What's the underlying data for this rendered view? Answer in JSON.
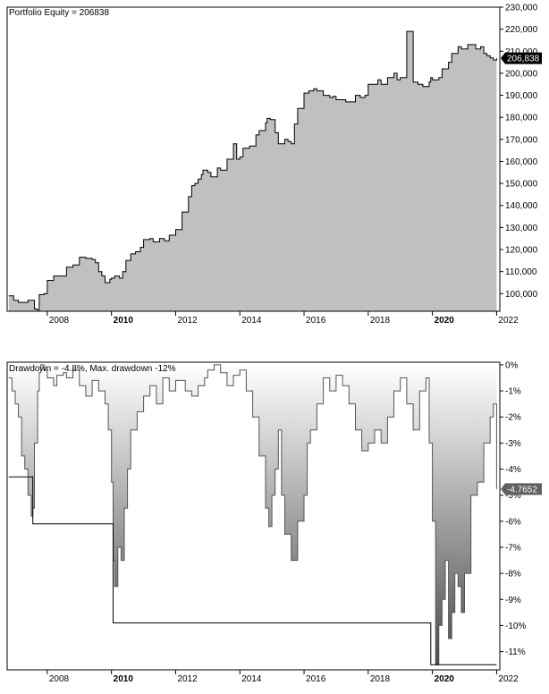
{
  "chart_data": [
    {
      "type": "area",
      "title": "Portfolio Equity = 206838",
      "last_value_label": "206,838",
      "y_tick_labels": [
        "100,000",
        "110,000",
        "120,000",
        "130,000",
        "140,000",
        "150,000",
        "160,000",
        "170,000",
        "180,000",
        "190,000",
        "200,000",
        "210,000",
        "220,000",
        "230,000"
      ],
      "y_ticks": [
        100000,
        110000,
        120000,
        130000,
        140000,
        150000,
        160000,
        170000,
        180000,
        190000,
        200000,
        210000,
        220000,
        230000
      ],
      "ylim": [
        92000,
        230000
      ],
      "x_tick_labels": [
        "2008",
        "2010",
        "2012",
        "2014",
        "2016",
        "2018",
        "2020",
        "2022"
      ],
      "x_ticks": [
        2008,
        2010,
        2012,
        2014,
        2016,
        2018,
        2020,
        2022
      ],
      "bold_x_ticks": [
        "2010",
        "2020"
      ],
      "xlim": [
        2006.75,
        2022.1
      ],
      "grid": false,
      "colors": {
        "fill": "#c0c0c0",
        "line": "#000000",
        "label_bg": "#000000",
        "label_text": "#ffffff"
      },
      "series": [
        {
          "x": [
            2006.8,
            2006.95,
            2007.1,
            2007.3,
            2007.4,
            2007.6,
            2007.7,
            2007.75,
            2007.9,
            2008.0,
            2008.2,
            2008.4,
            2008.5,
            2008.6,
            2008.8,
            2008.9,
            2009.0,
            2009.2,
            2009.4,
            2009.5,
            2009.6,
            2009.7,
            2009.8,
            2009.95,
            2010.0,
            2010.1,
            2010.25,
            2010.35,
            2010.45,
            2010.6,
            2010.75,
            2010.9,
            2011.0,
            2011.2,
            2011.3,
            2011.5,
            2011.65,
            2011.8,
            2012.0,
            2012.2,
            2012.4,
            2012.5,
            2012.6,
            2012.7,
            2012.8,
            2012.85,
            2013.0,
            2013.1,
            2013.3,
            2013.4,
            2013.6,
            2013.8,
            2013.9,
            2014.0,
            2014.1,
            2014.3,
            2014.5,
            2014.6,
            2014.8,
            2014.85,
            2014.95,
            2015.0,
            2015.1,
            2015.2,
            2015.3,
            2015.4,
            2015.5,
            2015.6,
            2015.7,
            2015.8,
            2016.0,
            2016.15,
            2016.3,
            2016.4,
            2016.6,
            2016.8,
            2016.9,
            2017.0,
            2017.1,
            2017.3,
            2017.6,
            2017.75,
            2017.9,
            2018.0,
            2018.3,
            2018.4,
            2018.6,
            2018.8,
            2018.9,
            2019.0,
            2019.2,
            2019.4,
            2019.55,
            2019.7,
            2019.85,
            2019.9,
            2019.95,
            2020.0,
            2020.1,
            2020.2,
            2020.3,
            2020.5,
            2020.6,
            2020.8,
            2020.9,
            2021.0,
            2021.1,
            2021.2,
            2021.35,
            2021.5,
            2021.6,
            2021.7,
            2021.8,
            2021.9,
            2022.0
          ],
          "y": [
            99000,
            97000,
            96000,
            96000,
            97000,
            93000,
            92000,
            99500,
            100000,
            106000,
            108000,
            108000,
            108000,
            112000,
            113000,
            113000,
            116500,
            116000,
            115500,
            114000,
            110000,
            108000,
            105000,
            106500,
            107000,
            108000,
            107000,
            110000,
            115000,
            118000,
            119000,
            121000,
            124500,
            125000,
            123500,
            125000,
            124000,
            126500,
            129000,
            137000,
            144000,
            149000,
            150000,
            152000,
            154000,
            156000,
            155000,
            153000,
            157000,
            156000,
            161000,
            168000,
            161000,
            162000,
            166000,
            167000,
            172000,
            174000,
            177500,
            179500,
            179000,
            179000,
            173000,
            168000,
            168000,
            170000,
            169000,
            168000,
            177000,
            184000,
            191000,
            192000,
            193000,
            192000,
            190000,
            189000,
            189500,
            188000,
            188000,
            187000,
            190000,
            189000,
            190000,
            195000,
            197000,
            195000,
            198000,
            200000,
            197000,
            198000,
            219000,
            196000,
            195000,
            194000,
            194000,
            196000,
            198000,
            197000,
            197000,
            198000,
            202000,
            205000,
            209000,
            212000,
            211000,
            211000,
            213000,
            213000,
            211000,
            212000,
            209000,
            208000,
            207000,
            206000,
            206838
          ]
        }
      ]
    },
    {
      "type": "area",
      "title": "Drawdown = -4.8%, Max. drawdown -12%",
      "last_value_label": "-4.7652",
      "y_tick_labels": [
        "0%",
        "-1%",
        "-2%",
        "-3%",
        "-4%",
        "-5%",
        "-6%",
        "-7%",
        "-8%",
        "-9%",
        "-10%",
        "-11%"
      ],
      "y_ticks": [
        0,
        -1,
        -2,
        -3,
        -4,
        -5,
        -6,
        -7,
        -8,
        -9,
        -10,
        -11
      ],
      "ylim": [
        -11.7,
        0.1
      ],
      "x_tick_labels": [
        "2008",
        "2010",
        "2012",
        "2014",
        "2016",
        "2018",
        "2020",
        "2022"
      ],
      "x_ticks": [
        2008,
        2010,
        2012,
        2014,
        2016,
        2018,
        2020,
        2022
      ],
      "bold_x_ticks": [
        "2010",
        "2020"
      ],
      "xlim": [
        2006.75,
        2022.1
      ],
      "grid": false,
      "colors": {
        "gradient_top": "#ffffff",
        "gradient_bottom": "#4a4a4a",
        "line": "#000000",
        "label_bg": "#606060",
        "label_text": "#ffffff"
      },
      "series": [
        {
          "name": "drawdown",
          "x": [
            2006.8,
            2006.9,
            2007.0,
            2007.1,
            2007.2,
            2007.3,
            2007.4,
            2007.5,
            2007.55,
            2007.6,
            2007.7,
            2007.75,
            2007.8,
            2007.9,
            2008.0,
            2008.2,
            2008.3,
            2008.5,
            2008.6,
            2008.8,
            2009.0,
            2009.2,
            2009.4,
            2009.6,
            2009.8,
            2009.9,
            2010.0,
            2010.05,
            2010.1,
            2010.2,
            2010.3,
            2010.4,
            2010.5,
            2010.6,
            2010.8,
            2011.0,
            2011.2,
            2011.4,
            2011.6,
            2011.8,
            2012.0,
            2012.3,
            2012.5,
            2012.7,
            2012.9,
            2013.0,
            2013.2,
            2013.4,
            2013.6,
            2013.8,
            2014.0,
            2014.2,
            2014.4,
            2014.6,
            2014.8,
            2014.9,
            2015.0,
            2015.1,
            2015.2,
            2015.3,
            2015.4,
            2015.6,
            2015.8,
            2016.0,
            2016.1,
            2016.2,
            2016.4,
            2016.6,
            2016.8,
            2017.0,
            2017.2,
            2017.4,
            2017.6,
            2017.8,
            2018.0,
            2018.2,
            2018.4,
            2018.6,
            2018.8,
            2019.0,
            2019.2,
            2019.4,
            2019.6,
            2019.8,
            2019.9,
            2020.0,
            2020.1,
            2020.2,
            2020.3,
            2020.4,
            2020.5,
            2020.6,
            2020.7,
            2020.8,
            2020.9,
            2021.0,
            2021.2,
            2021.4,
            2021.6,
            2021.8,
            2021.9,
            2022.0
          ],
          "y": [
            -0.5,
            -1.0,
            -1.5,
            -2.0,
            -3.5,
            -4.0,
            -5.0,
            -5.8,
            -5.5,
            -3.0,
            -1.0,
            -0.3,
            0,
            -0.2,
            -0.5,
            -0.8,
            -0.4,
            -0.3,
            -0.5,
            -0.2,
            -0.8,
            -1.2,
            -0.6,
            -1.0,
            -1.5,
            -2.5,
            -4.5,
            -7.5,
            -8.5,
            -7.0,
            -7.5,
            -5.5,
            -4.0,
            -2.5,
            -1.8,
            -1.2,
            -0.8,
            -1.5,
            -0.5,
            -1.0,
            -0.6,
            -1.0,
            -1.2,
            -0.8,
            -0.5,
            -0.2,
            0,
            -0.3,
            -0.8,
            -0.4,
            -0.2,
            -1.0,
            -2.0,
            -3.5,
            -5.5,
            -6.2,
            -5.0,
            -4.0,
            -2.5,
            -5.0,
            -6.5,
            -7.5,
            -6.0,
            -5.0,
            -3.0,
            -2.5,
            -1.5,
            -0.5,
            -1.0,
            -0.4,
            -0.8,
            -1.5,
            -2.5,
            -3.3,
            -3.0,
            -2.5,
            -3.0,
            -2.0,
            -1.0,
            -0.5,
            -1.5,
            -2.5,
            -1.0,
            -0.5,
            -3.0,
            -6.0,
            -11.5,
            -10.0,
            -9.0,
            -7.5,
            -10.5,
            -9.5,
            -8.0,
            -8.5,
            -9.5,
            -8.0,
            -5.0,
            -4.5,
            -3.0,
            -2.0,
            -1.5,
            -4.7652
          ]
        },
        {
          "name": "max drawdown",
          "x": [
            2006.8,
            2007.55,
            2007.55,
            2010.05,
            2010.05,
            2019.95,
            2019.95,
            2022.0
          ],
          "y": [
            -4.3,
            -4.3,
            -6.1,
            -6.1,
            -9.9,
            -9.9,
            -11.5,
            -11.5
          ]
        }
      ]
    }
  ]
}
